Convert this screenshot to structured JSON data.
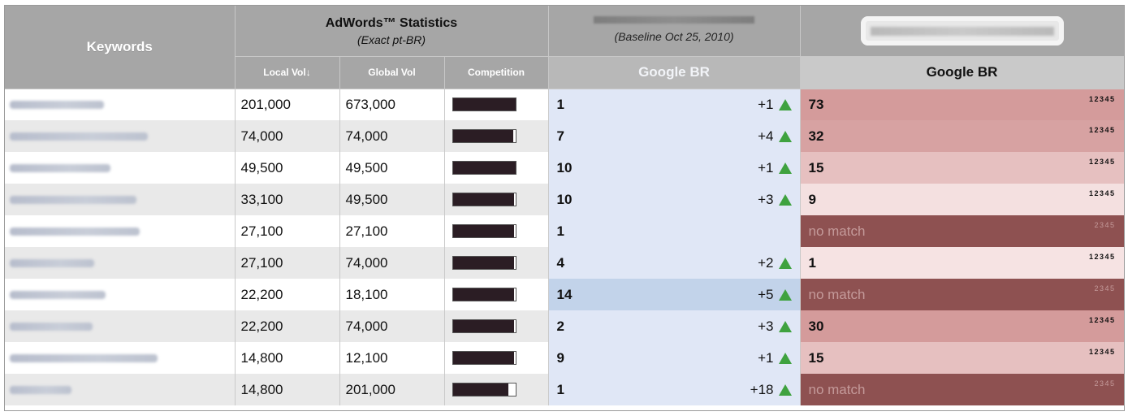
{
  "header": {
    "keywords": "Keywords",
    "adwords_title": "AdWords™ Statistics",
    "adwords_subtitle": "(Exact pt-BR)",
    "local_vol": "Local Vol↓",
    "global_vol": "Global Vol",
    "competition": "Competition",
    "baseline": "(Baseline Oct 25, 2010)",
    "google_br_left": "Google BR",
    "google_br_right": "Google BR"
  },
  "colors": {
    "rank_bg": "#e0e7f6",
    "rank_highlight": "#c2d3ea",
    "up_arrow": "#3fa23f",
    "no_match": "#8e5151"
  },
  "rows": [
    {
      "local": "201,000",
      "global": "673,000",
      "competition": 1.0,
      "rank": "1",
      "change": "+1",
      "gbr": "73",
      "pages": "12345",
      "gbr_color": "#d49b9b",
      "kw_width": 116
    },
    {
      "local": "74,000",
      "global": "74,000",
      "competition": 0.96,
      "rank": "7",
      "change": "+4",
      "gbr": "32",
      "pages": "12345",
      "gbr_color": "#d7a2a2",
      "kw_width": 170
    },
    {
      "local": "49,500",
      "global": "49,500",
      "competition": 1.0,
      "rank": "10",
      "change": "+1",
      "gbr": "15",
      "pages": "12345",
      "gbr_color": "#e6c0c0",
      "kw_width": 124
    },
    {
      "local": "33,100",
      "global": "49,500",
      "competition": 0.97,
      "rank": "10",
      "change": "+3",
      "gbr": "9",
      "pages": "12345",
      "gbr_color": "#f4e0e0",
      "kw_width": 156
    },
    {
      "local": "27,100",
      "global": "27,100",
      "competition": 0.97,
      "rank": "1",
      "change": "",
      "gbr": "no match",
      "pages": "2345",
      "gbr_color": "#8e5151",
      "kw_width": 160
    },
    {
      "local": "27,100",
      "global": "74,000",
      "competition": 0.97,
      "rank": "4",
      "change": "+2",
      "gbr": "1",
      "pages": "12345",
      "gbr_color": "#f6e3e3",
      "kw_width": 104
    },
    {
      "local": "22,200",
      "global": "18,100",
      "competition": 0.97,
      "rank": "14",
      "change": "+5",
      "gbr": "no match",
      "pages": "2345",
      "gbr_color": "#8e5151",
      "kw_width": 118,
      "highlight": true
    },
    {
      "local": "22,200",
      "global": "74,000",
      "competition": 0.97,
      "rank": "2",
      "change": "+3",
      "gbr": "30",
      "pages": "12345",
      "gbr_color": "#d49b9b",
      "kw_width": 102
    },
    {
      "local": "14,800",
      "global": "12,100",
      "competition": 0.97,
      "rank": "9",
      "change": "+1",
      "gbr": "15",
      "pages": "12345",
      "gbr_color": "#e6c0c0",
      "kw_width": 182
    },
    {
      "local": "14,800",
      "global": "201,000",
      "competition": 0.88,
      "rank": "1",
      "change": "+18",
      "gbr": "no match",
      "pages": "2345",
      "gbr_color": "#8e5151",
      "kw_width": 76
    }
  ]
}
